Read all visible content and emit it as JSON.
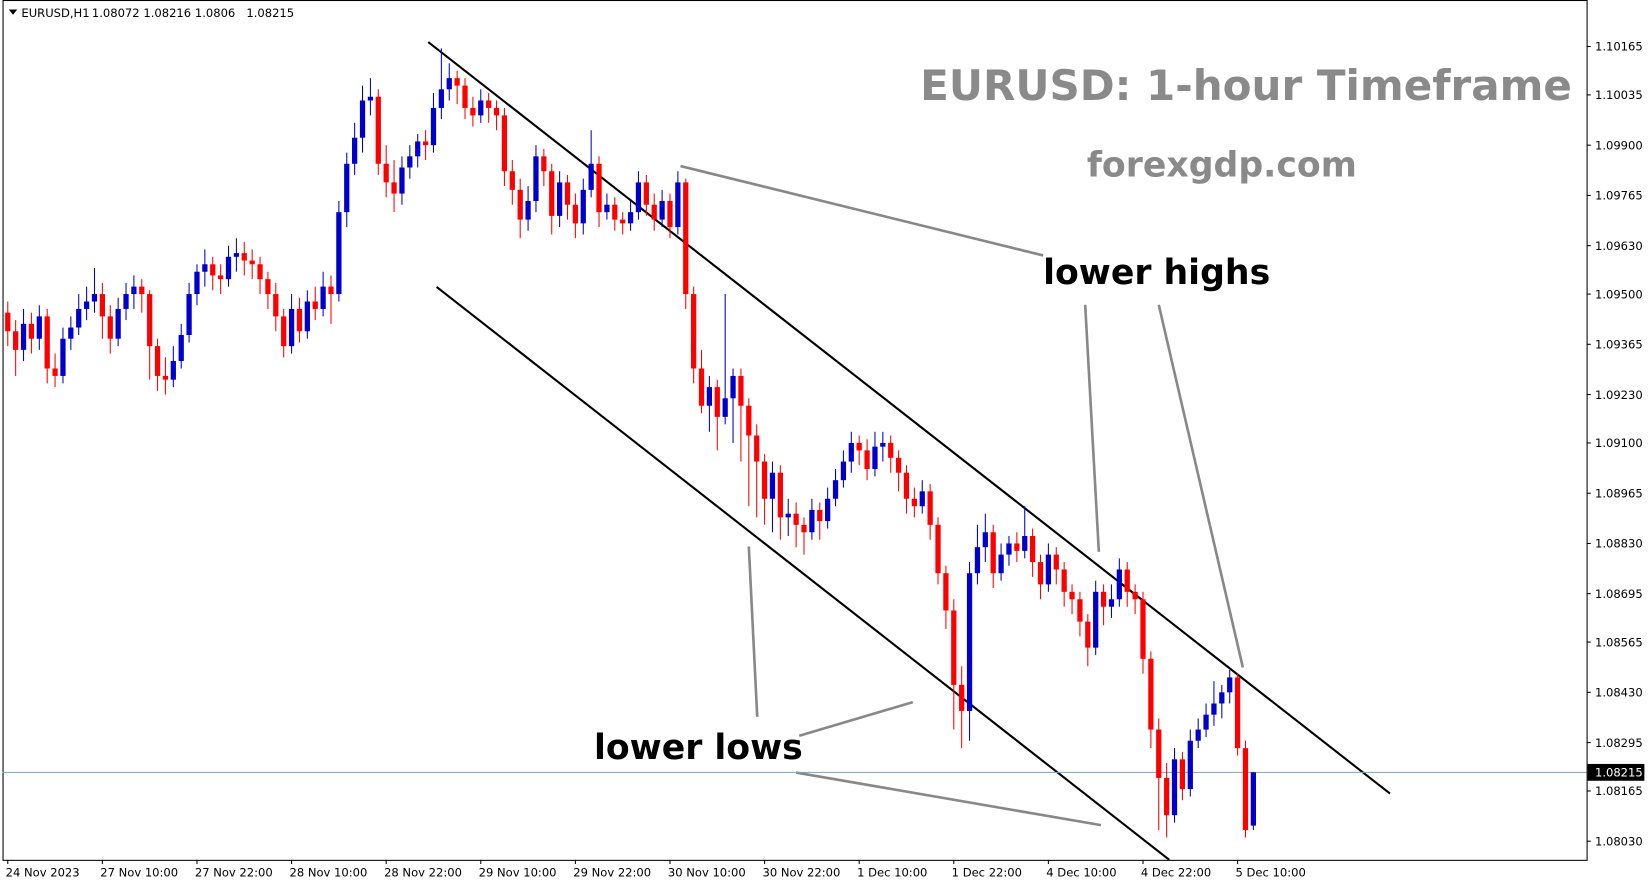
{
  "chart_data": {
    "type": "candlestick",
    "symbol": "EURUSD,H1",
    "title": "EURUSD: 1-hour Timeframe",
    "subtitle": "forexgdp.com",
    "annotations": [
      "lower highs",
      "lower lows"
    ],
    "up_color": "#0000cc",
    "down_color": "#ff0000",
    "current_price": 1.08215,
    "ylim": [
      1.0798,
      1.1029
    ],
    "yticks": [
      1.10165,
      1.10035,
      {
        "value": 1.099,
        "label": "1.09900"
      },
      1.09765,
      {
        "value": 1.0963,
        "label": "1.09630"
      },
      {
        "value": 1.095,
        "label": "1.09500"
      },
      1.09365,
      {
        "value": 1.0923,
        "label": "1.09230"
      },
      {
        "value": 1.091,
        "label": "1.09100"
      },
      1.08965,
      {
        "value": 1.0883,
        "label": "1.08830"
      },
      1.08695,
      1.08565,
      {
        "value": 1.0843,
        "label": "1.08430"
      },
      1.08295,
      1.08165,
      {
        "value": 1.0803,
        "label": "1.08030"
      }
    ],
    "xticks": [
      {
        "value": 0,
        "label": "24 Nov 2023"
      },
      {
        "value": 12,
        "label": "27 Nov 10:00"
      },
      {
        "value": 24,
        "label": "27 Nov 22:00"
      },
      {
        "value": 36,
        "label": "28 Nov 10:00"
      },
      {
        "value": 48,
        "label": "28 Nov 22:00"
      },
      {
        "value": 60,
        "label": "29 Nov 10:00"
      },
      {
        "value": 72,
        "label": "29 Nov 22:00"
      },
      {
        "value": 84,
        "label": "30 Nov 10:00"
      },
      {
        "value": 96,
        "label": "30 Nov 22:00"
      },
      {
        "value": 108,
        "label": "1 Dec 10:00"
      },
      {
        "value": 120,
        "label": "1 Dec 22:00"
      },
      {
        "value": 132,
        "label": "4 Dec 10:00"
      },
      {
        "value": 144,
        "label": "4 Dec 22:00"
      },
      {
        "value": 156,
        "label": "5 Dec 10:00"
      }
    ],
    "candles": [
      [
        1.0945,
        1.0948,
        1.0936,
        1.094
      ],
      [
        1.094,
        1.0943,
        1.0928,
        1.0935
      ],
      [
        1.0935,
        1.0946,
        1.0932,
        1.0942
      ],
      [
        1.0942,
        1.0945,
        1.0934,
        1.0938
      ],
      [
        1.0938,
        1.0947,
        1.0935,
        1.0944
      ],
      [
        1.0944,
        1.0946,
        1.0926,
        1.093
      ],
      [
        1.093,
        1.0934,
        1.0925,
        1.0928
      ],
      [
        1.0928,
        1.0941,
        1.0926,
        1.0938
      ],
      [
        1.0938,
        1.0944,
        1.0935,
        1.0941
      ],
      [
        1.0941,
        1.095,
        1.0939,
        1.0946
      ],
      [
        1.0946,
        1.0952,
        1.0943,
        1.0948
      ],
      [
        1.0948,
        1.0957,
        1.0945,
        1.095
      ],
      [
        1.095,
        1.0953,
        1.0938,
        1.0944
      ],
      [
        1.0944,
        1.0947,
        1.0934,
        1.0938
      ],
      [
        1.0938,
        1.0949,
        1.0936,
        1.0946
      ],
      [
        1.0946,
        1.0953,
        1.0943,
        1.095
      ],
      [
        1.095,
        1.0955,
        1.0946,
        1.0952
      ],
      [
        1.0952,
        1.0954,
        1.0945,
        1.095
      ],
      [
        1.095,
        1.0951,
        1.0927,
        1.0936
      ],
      [
        1.0936,
        1.0938,
        1.0924,
        1.0928
      ],
      [
        1.0928,
        1.0933,
        1.0923,
        1.0927
      ],
      [
        1.0927,
        1.0936,
        1.0925,
        1.0932
      ],
      [
        1.0932,
        1.0942,
        1.093,
        1.0939
      ],
      [
        1.0939,
        1.0953,
        1.0937,
        1.095
      ],
      [
        1.095,
        1.0958,
        1.0947,
        1.0956
      ],
      [
        1.0956,
        1.0962,
        1.0952,
        1.0958
      ],
      [
        1.0958,
        1.096,
        1.0951,
        1.0955
      ],
      [
        1.0955,
        1.0958,
        1.095,
        1.0954
      ],
      [
        1.0954,
        1.0963,
        1.0952,
        1.096
      ],
      [
        1.096,
        1.0965,
        1.0956,
        1.0961
      ],
      [
        1.0961,
        1.0964,
        1.0955,
        1.0959
      ],
      [
        1.0959,
        1.0962,
        1.0954,
        1.0958
      ],
      [
        1.0958,
        1.096,
        1.095,
        1.0954
      ],
      [
        1.0954,
        1.0956,
        1.0946,
        1.095
      ],
      [
        1.095,
        1.0953,
        1.094,
        1.0944
      ],
      [
        1.0944,
        1.0946,
        1.0933,
        1.0936
      ],
      [
        1.0936,
        1.095,
        1.0934,
        1.0946
      ],
      [
        1.0946,
        1.0949,
        1.0937,
        1.094
      ],
      [
        1.094,
        1.0951,
        1.0938,
        1.0948
      ],
      [
        1.0948,
        1.0952,
        1.0943,
        1.0946
      ],
      [
        1.0946,
        1.0956,
        1.0944,
        1.0952
      ],
      [
        1.0952,
        1.0955,
        1.0942,
        1.095
      ],
      [
        1.095,
        1.0975,
        1.0948,
        1.0972
      ],
      [
        1.0972,
        1.0988,
        1.0968,
        1.0985
      ],
      [
        1.0985,
        1.0996,
        1.0982,
        1.0992
      ],
      [
        1.0992,
        1.1006,
        1.0988,
        1.1002
      ],
      [
        1.1002,
        1.1008,
        1.0998,
        1.1003
      ],
      [
        1.1003,
        1.1005,
        1.0982,
        1.0985
      ],
      [
        1.0985,
        1.099,
        1.0976,
        1.098
      ],
      [
        1.098,
        1.0986,
        1.0972,
        1.0977
      ],
      [
        1.0977,
        1.0987,
        1.0974,
        1.0984
      ],
      [
        1.0984,
        1.099,
        1.0981,
        1.0987
      ],
      [
        1.0987,
        1.0993,
        1.0984,
        1.0991
      ],
      [
        1.0991,
        1.0994,
        1.0986,
        1.099
      ],
      [
        1.099,
        1.1004,
        1.0988,
        1.1
      ],
      [
        1.1,
        1.1016,
        1.0997,
        1.1005
      ],
      [
        1.1005,
        1.1012,
        1.1002,
        1.1008
      ],
      [
        1.1008,
        1.101,
        1.1001,
        1.1006
      ],
      [
        1.1006,
        1.1008,
        1.0997,
        1.1
      ],
      [
        1.1,
        1.1003,
        1.0995,
        1.0998
      ],
      [
        1.0998,
        1.1005,
        1.0996,
        1.1002
      ],
      [
        1.1002,
        1.1004,
        1.0996,
        1.1
      ],
      [
        1.1,
        1.1002,
        1.0994,
        1.0998
      ],
      [
        1.0998,
        1.1,
        1.0979,
        1.0983
      ],
      [
        1.0983,
        1.0986,
        1.0974,
        1.0978
      ],
      [
        1.0978,
        1.0981,
        1.0965,
        1.097
      ],
      [
        1.097,
        1.0979,
        1.0967,
        1.0975
      ],
      [
        1.0975,
        1.099,
        1.0972,
        1.0987
      ],
      [
        1.0987,
        1.0989,
        1.0979,
        1.0983
      ],
      [
        1.0983,
        1.0985,
        1.0966,
        1.0971
      ],
      [
        1.0971,
        1.0983,
        1.0968,
        1.098
      ],
      [
        1.098,
        1.0982,
        1.097,
        1.0974
      ],
      [
        1.0974,
        1.0977,
        1.0965,
        1.0969
      ],
      [
        1.0969,
        1.0981,
        1.0966,
        1.0978
      ],
      [
        1.0978,
        1.0994,
        1.0976,
        1.0985
      ],
      [
        1.0985,
        1.0987,
        1.0968,
        1.0972
      ],
      [
        1.0972,
        1.0977,
        1.097,
        1.0974
      ],
      [
        1.0974,
        1.0976,
        1.0967,
        1.097
      ],
      [
        1.097,
        1.0972,
        1.0966,
        1.0969
      ],
      [
        1.0969,
        1.0975,
        1.0967,
        1.0972
      ],
      [
        1.0972,
        1.0983,
        1.097,
        1.098
      ],
      [
        1.098,
        1.0982,
        1.0971,
        1.0974
      ],
      [
        1.0974,
        1.0977,
        1.0967,
        1.097
      ],
      [
        1.097,
        1.0978,
        1.0968,
        1.0975
      ],
      [
        1.0975,
        1.0977,
        1.0965,
        1.0968
      ],
      [
        1.0968,
        1.0983,
        1.0966,
        1.098
      ],
      [
        1.098,
        1.0981,
        1.0946,
        1.095
      ],
      [
        1.095,
        1.0952,
        1.0926,
        1.093
      ],
      [
        1.093,
        1.0935,
        1.0918,
        1.092
      ],
      [
        1.092,
        1.0928,
        1.0913,
        1.0925
      ],
      [
        1.0925,
        1.0927,
        1.0908,
        1.0917
      ],
      [
        1.0917,
        1.095,
        1.0915,
        1.0922
      ],
      [
        1.0922,
        1.093,
        1.091,
        1.0928
      ],
      [
        1.0928,
        1.093,
        1.0905,
        1.092
      ],
      [
        1.092,
        1.0922,
        1.0893,
        1.0912
      ],
      [
        1.0912,
        1.0915,
        1.089,
        1.0905
      ],
      [
        1.0905,
        1.0907,
        1.0888,
        1.0895
      ],
      [
        1.0895,
        1.0905,
        1.0886,
        1.0902
      ],
      [
        1.0902,
        1.0904,
        1.0884,
        1.089
      ],
      [
        1.089,
        1.0895,
        1.0885,
        1.0891
      ],
      [
        1.0891,
        1.0894,
        1.0882,
        1.0888
      ],
      [
        1.0888,
        1.089,
        1.088,
        1.0886
      ],
      [
        1.0886,
        1.0895,
        1.0884,
        1.0892
      ],
      [
        1.0892,
        1.0894,
        1.0884,
        1.0889
      ],
      [
        1.0889,
        1.0898,
        1.0887,
        1.0895
      ],
      [
        1.0895,
        1.0903,
        1.0893,
        1.09
      ],
      [
        1.09,
        1.0908,
        1.0898,
        1.0905
      ],
      [
        1.0905,
        1.0913,
        1.0902,
        1.091
      ],
      [
        1.091,
        1.0912,
        1.0904,
        1.0908
      ],
      [
        1.0908,
        1.0911,
        1.09,
        1.0903
      ],
      [
        1.0903,
        1.0913,
        1.0901,
        1.0909
      ],
      [
        1.0909,
        1.0913,
        1.0905,
        1.091
      ],
      [
        1.091,
        1.0912,
        1.0902,
        1.0906
      ],
      [
        1.0906,
        1.0908,
        1.0897,
        1.0902
      ],
      [
        1.0902,
        1.0904,
        1.0891,
        1.0895
      ],
      [
        1.0895,
        1.0898,
        1.089,
        1.0893
      ],
      [
        1.0893,
        1.09,
        1.0891,
        1.0897
      ],
      [
        1.0897,
        1.0899,
        1.0884,
        1.0888
      ],
      [
        1.0888,
        1.089,
        1.0872,
        1.0875
      ],
      [
        1.0875,
        1.0877,
        1.086,
        1.0865
      ],
      [
        1.0865,
        1.0868,
        1.0833,
        1.0845
      ],
      [
        1.0845,
        1.085,
        1.0828,
        1.0838
      ],
      [
        1.0838,
        1.0878,
        1.083,
        1.0875
      ],
      [
        1.0875,
        1.0888,
        1.0872,
        1.0882
      ],
      [
        1.0882,
        1.0891,
        1.0878,
        1.0886
      ],
      [
        1.0886,
        1.0888,
        1.0871,
        1.0875
      ],
      [
        1.0875,
        1.0883,
        1.0873,
        1.088
      ],
      [
        1.088,
        1.0885,
        1.0877,
        1.0883
      ],
      [
        1.0883,
        1.0886,
        1.0878,
        1.0881
      ],
      [
        1.0881,
        1.0893,
        1.0879,
        1.0885
      ],
      [
        1.0885,
        1.0887,
        1.0874,
        1.0878
      ],
      [
        1.0878,
        1.088,
        1.0868,
        1.0872
      ],
      [
        1.0872,
        1.0883,
        1.087,
        1.088
      ],
      [
        1.088,
        1.0882,
        1.0872,
        1.0876
      ],
      [
        1.0876,
        1.0878,
        1.0866,
        1.087
      ],
      [
        1.087,
        1.0872,
        1.0864,
        1.0868
      ],
      [
        1.0868,
        1.087,
        1.0858,
        1.0862
      ],
      [
        1.0862,
        1.0864,
        1.085,
        1.0855
      ],
      [
        1.0855,
        1.0873,
        1.0853,
        1.087
      ],
      [
        1.087,
        1.0872,
        1.0861,
        1.0866
      ],
      [
        1.0866,
        1.0872,
        1.0863,
        1.0868
      ],
      [
        1.0868,
        1.0879,
        1.0866,
        1.0876
      ],
      [
        1.0876,
        1.0878,
        1.0866,
        1.087
      ],
      [
        1.087,
        1.0872,
        1.0864,
        1.0868
      ],
      [
        1.0868,
        1.087,
        1.0848,
        1.0852
      ],
      [
        1.0852,
        1.0854,
        1.0828,
        1.0833
      ],
      [
        1.0833,
        1.0836,
        1.0806,
        1.082
      ],
      [
        1.082,
        1.0824,
        1.0804,
        1.081
      ],
      [
        1.081,
        1.0828,
        1.0808,
        1.0825
      ],
      [
        1.0825,
        1.0827,
        1.0814,
        1.0817
      ],
      [
        1.0817,
        1.0833,
        1.0815,
        1.083
      ],
      [
        1.083,
        1.0836,
        1.0828,
        1.0833
      ],
      [
        1.0833,
        1.084,
        1.0831,
        1.0837
      ],
      [
        1.0837,
        1.0846,
        1.0834,
        1.084
      ],
      [
        1.084,
        1.0845,
        1.0836,
        1.0843
      ],
      [
        1.0843,
        1.0849,
        1.084,
        1.0847
      ],
      [
        1.0847,
        1.0848,
        1.0826,
        1.0828
      ],
      [
        1.0828,
        1.083,
        1.0804,
        1.0806
      ],
      [
        1.08072,
        1.08216,
        1.0806,
        1.08215
      ]
    ]
  }
}
